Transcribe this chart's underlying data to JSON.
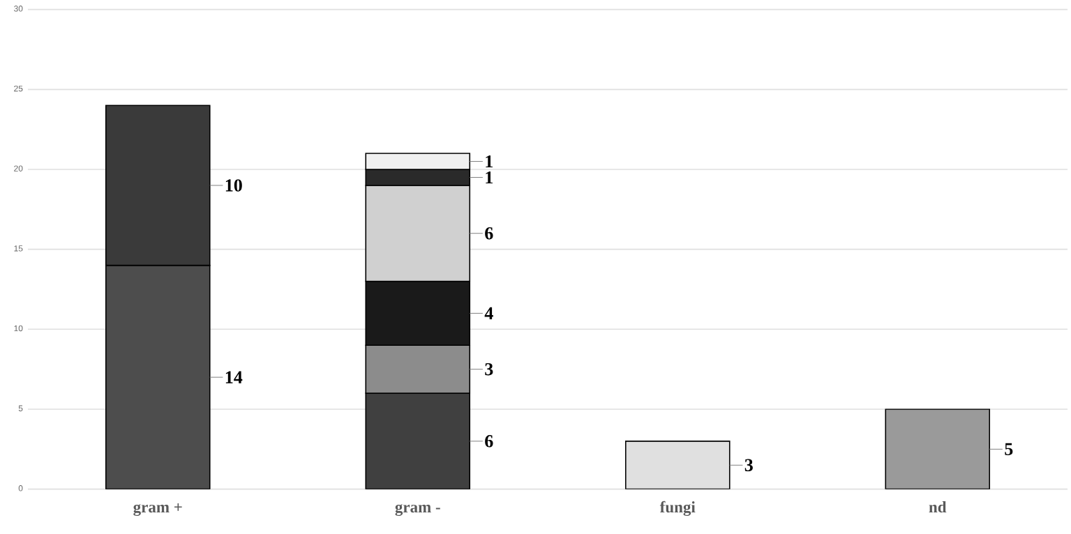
{
  "chart_data": {
    "type": "bar",
    "stacked": true,
    "categories": [
      "gram +",
      "gram -",
      "fungi",
      "nd"
    ],
    "series": [
      {
        "color": "#4d4d4d",
        "values": [
          14,
          null,
          null,
          null
        ]
      },
      {
        "color": "#3a3a3a",
        "values": [
          10,
          null,
          null,
          null
        ]
      },
      {
        "color": "#404040",
        "values": [
          null,
          6,
          null,
          null
        ]
      },
      {
        "color": "#8c8c8c",
        "values": [
          null,
          3,
          null,
          null
        ]
      },
      {
        "color": "#1a1a1a",
        "values": [
          null,
          4,
          null,
          null
        ]
      },
      {
        "color": "#d0d0d0",
        "values": [
          null,
          6,
          null,
          null
        ]
      },
      {
        "color": "#2a2a2a",
        "values": [
          null,
          1,
          null,
          null
        ]
      },
      {
        "color": "#f0f0f0",
        "values": [
          null,
          1,
          null,
          null
        ]
      },
      {
        "color": "#e0e0e0",
        "values": [
          null,
          null,
          3,
          null
        ]
      },
      {
        "color": "#9a9a9a",
        "values": [
          null,
          null,
          null,
          5
        ]
      }
    ],
    "ylim": [
      0,
      30
    ],
    "yticks": [
      0,
      5,
      10,
      15,
      20,
      25,
      30
    ],
    "grid": "y",
    "data_labels": true
  }
}
